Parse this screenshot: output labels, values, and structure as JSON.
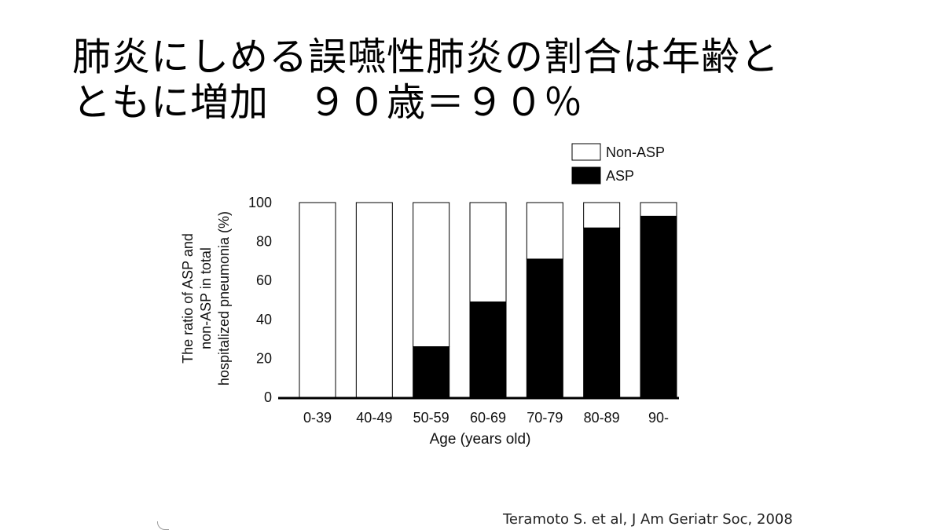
{
  "slide": {
    "title_line1": "肺炎にしめる誤嚥性肺炎の割合は年齢と",
    "title_line2": "ともに増加　９０歳＝９０％",
    "citation": "Teramoto S. et al, J Am Geriatr Soc, 2008"
  },
  "chart_data": {
    "type": "bar",
    "stacked": true,
    "categories": [
      "0-39",
      "40-49",
      "50-59",
      "60-69",
      "70-79",
      "80-89",
      "90-"
    ],
    "series": [
      {
        "name": "ASP",
        "values": [
          0,
          0,
          26,
          49,
          71,
          87,
          93
        ],
        "color": "#000000"
      },
      {
        "name": "Non-ASP",
        "values": [
          100,
          100,
          74,
          51,
          29,
          13,
          7
        ],
        "color": "#ffffff"
      }
    ],
    "xlabel": "Age (years old)",
    "ylabel_lines": [
      "The ratio of ASP and",
      "non-ASP in total",
      "hospitalized pneumonia (%)"
    ],
    "ylim": [
      0,
      100
    ],
    "yticks": [
      0,
      20,
      40,
      60,
      80,
      100
    ],
    "grid": false,
    "legend_position": "top-right",
    "legend_order": [
      "Non-ASP",
      "ASP"
    ]
  }
}
